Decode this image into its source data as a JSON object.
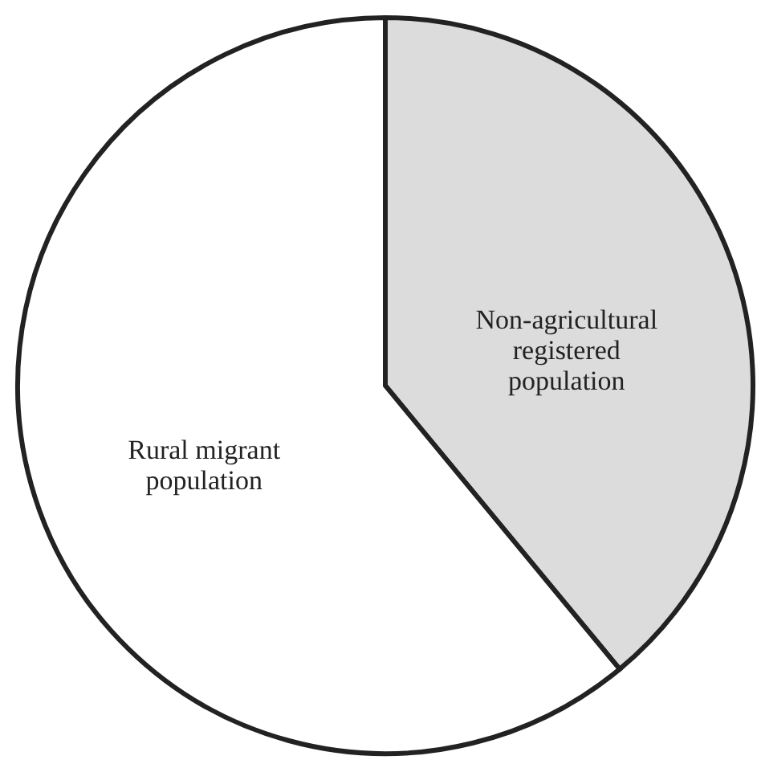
{
  "chart_data": {
    "type": "pie",
    "categories": [
      "Non-agricultural registered population",
      "Rural migrant population"
    ],
    "values": [
      39,
      61
    ],
    "colors": [
      "#dcdcdc",
      "#ffffff"
    ]
  }
}
